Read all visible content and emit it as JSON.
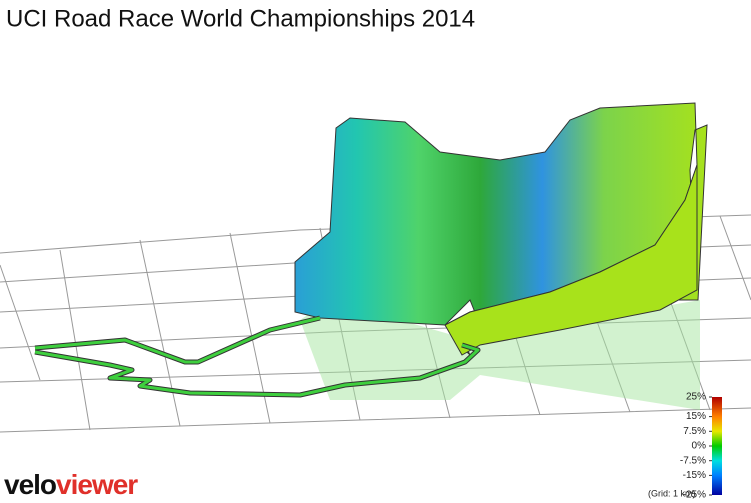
{
  "title": "UCI Road Race World Championships 2014",
  "legend": {
    "range": [
      -25,
      25
    ],
    "ticks": [
      {
        "value": 25,
        "label": "25%"
      },
      {
        "value": 15,
        "label": "15%"
      },
      {
        "value": 7.5,
        "label": "7.5%"
      },
      {
        "value": 0,
        "label": "0%"
      },
      {
        "value": -7.5,
        "label": "-7.5%"
      },
      {
        "value": -15,
        "label": "-15%"
      },
      {
        "value": -25,
        "label": "-25%"
      }
    ],
    "note": "(Grid: 1 km)"
  },
  "logo": {
    "prefix": "velo",
    "suffix": "viewer"
  }
}
